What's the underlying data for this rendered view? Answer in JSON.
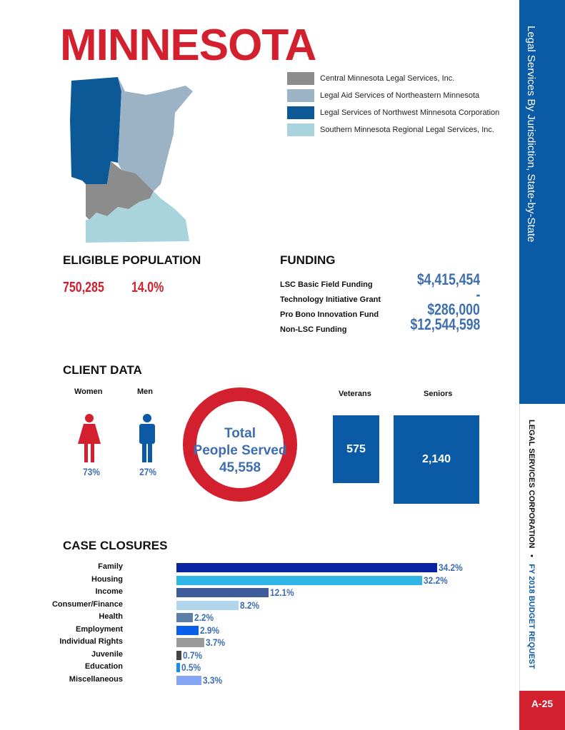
{
  "title": "MINNESOTA",
  "sidebar": {
    "top": "Legal Services By Jurisdiction, State-by-State",
    "org": "LEGAL SERVICES CORPORATION",
    "sep": "•",
    "budget": "FY 2018 BUDGET REQUEST",
    "page": "A-25"
  },
  "legend": [
    {
      "label": "Central Minnesota Legal Services, Inc.",
      "color": "#8c8c8c"
    },
    {
      "label": "Legal Aid Services of Northeastern Minnesota",
      "color": "#9bb3c4"
    },
    {
      "label": "Legal Services of Northwest Minnesota Corporation",
      "color": "#0b5a97"
    },
    {
      "label": "Southern Minnesota Regional Legal Services, Inc.",
      "color": "#a9d3dd"
    }
  ],
  "eligible": {
    "heading": "ELIGIBLE POPULATION",
    "count": "750,285",
    "percent": "14.0%"
  },
  "funding": {
    "heading": "FUNDING",
    "rows": [
      {
        "label": "LSC Basic Field Funding",
        "value": "$4,415,454"
      },
      {
        "label": "Technology Initiative Grant",
        "value": "-"
      },
      {
        "label": "Pro Bono Innovation Fund",
        "value": "$286,000"
      },
      {
        "label": "Non-LSC Funding",
        "value": "$12,544,598"
      }
    ]
  },
  "client": {
    "heading": "CLIENT DATA",
    "women_label": "Women",
    "women_pct": "73%",
    "men_label": "Men",
    "men_pct": "27%",
    "total_l1": "Total",
    "total_l2": "People Served",
    "total": "45,558",
    "veterans_label": "Veterans",
    "veterans": "575",
    "seniors_label": "Seniors",
    "seniors": "2,140"
  },
  "chart_data": {
    "type": "bar",
    "title": "CASE CLOSURES",
    "categories": [
      "Family",
      "Housing",
      "Income",
      "Consumer/Finance",
      "Health",
      "Employment",
      "Individual Rights",
      "Juvenile",
      "Education",
      "Miscellaneous"
    ],
    "values": [
      34.2,
      32.2,
      12.1,
      8.2,
      2.2,
      2.9,
      3.7,
      0.7,
      0.5,
      3.3
    ],
    "labels": [
      "34.2%",
      "32.2%",
      "12.1%",
      "8.2%",
      "2.2%",
      "2.9%",
      "3.7%",
      "0.7%",
      "0.5%",
      "3.3%"
    ],
    "colors": [
      "#0a23a0",
      "#2fb5e6",
      "#3f5c9a",
      "#b0d6ee",
      "#5b7fa8",
      "#0a5fe8",
      "#9a9a9a",
      "#444",
      "#1a8fe8",
      "#85a5f5"
    ],
    "unit": "%"
  }
}
